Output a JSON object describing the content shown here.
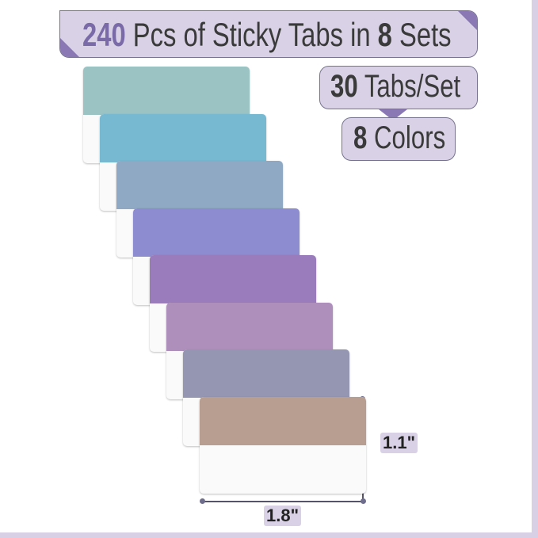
{
  "banner": {
    "count": "240",
    "middle": " Pcs of Sticky Tabs in ",
    "sets": "8",
    "suffix": " Sets"
  },
  "badges": {
    "tabs_per_set": {
      "number": "30",
      "label": " Tabs/Set"
    },
    "colors": {
      "number": "8",
      "label": " Colors"
    }
  },
  "tabs": [
    {
      "color": "#9bc3c4"
    },
    {
      "color": "#78b9d2"
    },
    {
      "color": "#8fa9c4"
    },
    {
      "color": "#8e8cd0"
    },
    {
      "color": "#9a7cbc"
    },
    {
      "color": "#ae8fbb"
    },
    {
      "color": "#9596b2"
    },
    {
      "color": "#b89d91"
    }
  ],
  "dimensions": {
    "height": "1.1\"",
    "width": "1.8\""
  },
  "colors": {
    "accent": "#8a78b4",
    "badge_fill": "#d9d2e6",
    "frame": "#d8d0e4"
  }
}
